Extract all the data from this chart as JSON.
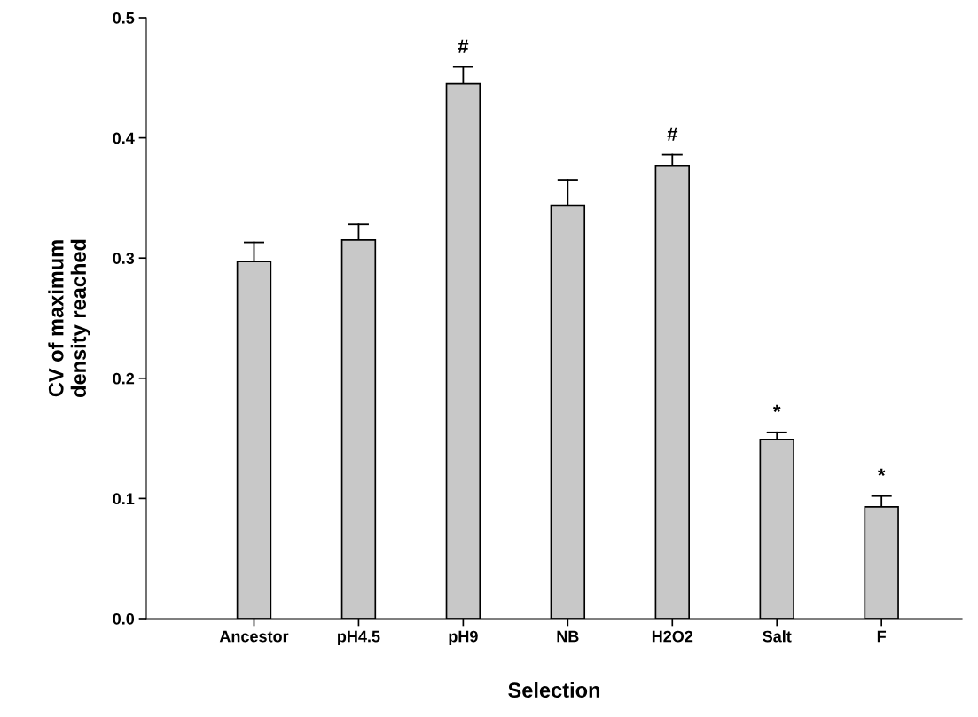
{
  "chart_data": {
    "type": "bar",
    "xlabel": "Selection",
    "ylabel": "CV of maximum\ndensity reached",
    "categories": [
      "Ancestor",
      "pH4.5",
      "pH9",
      "NB",
      "H2O2",
      "Salt",
      "F"
    ],
    "values": [
      0.297,
      0.315,
      0.445,
      0.344,
      0.377,
      0.149,
      0.093
    ],
    "errors": [
      [
        0.297,
        0.313
      ],
      [
        0.315,
        0.328
      ],
      [
        0.445,
        0.459
      ],
      [
        0.344,
        0.365
      ],
      [
        0.377,
        0.386
      ],
      [
        0.149,
        0.155
      ],
      [
        0.093,
        0.102
      ]
    ],
    "color": "#c8c8c8",
    "ylim": [
      0,
      0.5
    ],
    "yticks": [
      {
        "value": 0,
        "label": "0.0"
      },
      0.1,
      0.2,
      0.3,
      0.4,
      0.5
    ],
    "annotations": [
      {
        "text": "#",
        "x": "pH9",
        "y": 0.459
      },
      {
        "text": "#",
        "x": "H2O2",
        "y": 0.386
      },
      {
        "text": "*",
        "x": "Salt",
        "y": 0.155
      },
      {
        "text": "*",
        "x": "F",
        "y": 0.102
      }
    ]
  }
}
